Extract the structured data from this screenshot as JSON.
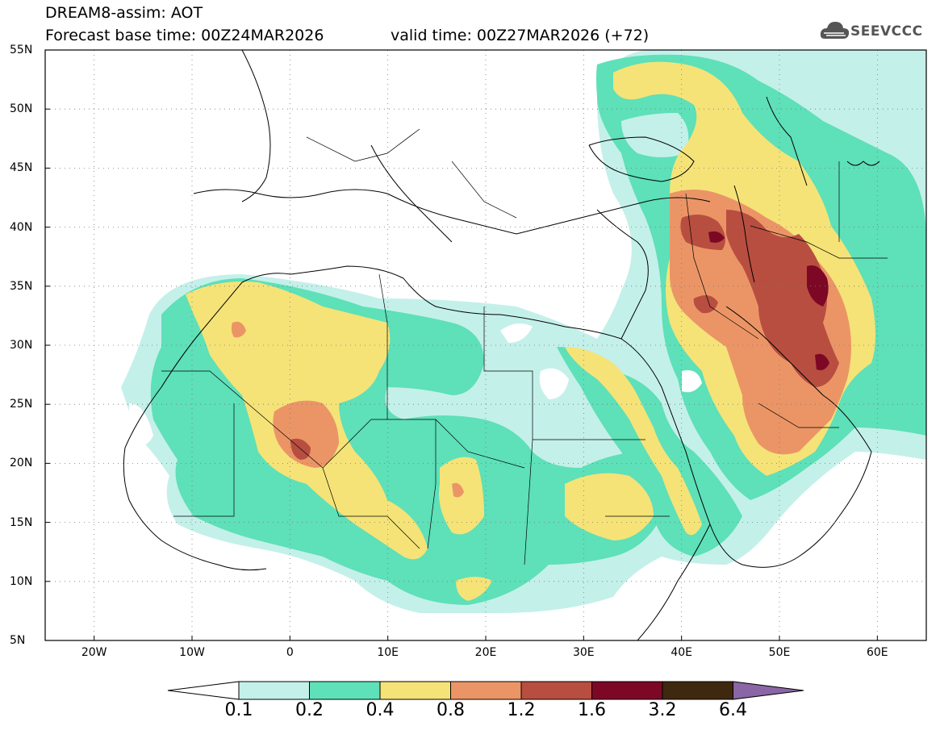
{
  "title": {
    "line1": "DREAM8-assim: AOT",
    "line2": "Forecast base time: 00Z24MAR2026",
    "valid": "valid time: 00Z27MAR2026 (+72)"
  },
  "logo": {
    "text": "SEEVCCC",
    "icon": "cloud-icon"
  },
  "map": {
    "lat_labels": [
      "55N",
      "50N",
      "45N",
      "40N",
      "35N",
      "30N",
      "25N",
      "20N",
      "15N",
      "10N",
      "5N"
    ],
    "lon_labels": [
      "20W",
      "10W",
      "0",
      "10E",
      "20E",
      "30E",
      "40E",
      "50E",
      "60E"
    ],
    "lat_range": [
      5,
      55
    ],
    "lon_range": [
      -25,
      65
    ],
    "lat_ticks": [
      55,
      50,
      45,
      40,
      35,
      30,
      25,
      20,
      15,
      10,
      5
    ],
    "lon_ticks": [
      -20,
      -10,
      0,
      10,
      20,
      30,
      40,
      50,
      60
    ],
    "grid": "dotted"
  },
  "colorbar": {
    "labels": [
      "0.1",
      "0.2",
      "0.4",
      "0.8",
      "1.2",
      "1.6",
      "3.2",
      "6.4"
    ],
    "colors": [
      "#c4f0ea",
      "#5ee0b8",
      "#f5e378",
      "#eb9567",
      "#b84e40",
      "#7c0826",
      "#3e2810"
    ],
    "under_color": "#ffffff",
    "over_color": "#8a66a6"
  },
  "colors": {
    "aot_0_1": "#c4f0ea",
    "aot_0_2": "#5ee0b8",
    "aot_0_4": "#f5e378",
    "aot_0_8": "#eb9567",
    "aot_1_2": "#b84e40",
    "aot_1_6": "#7c0826"
  }
}
